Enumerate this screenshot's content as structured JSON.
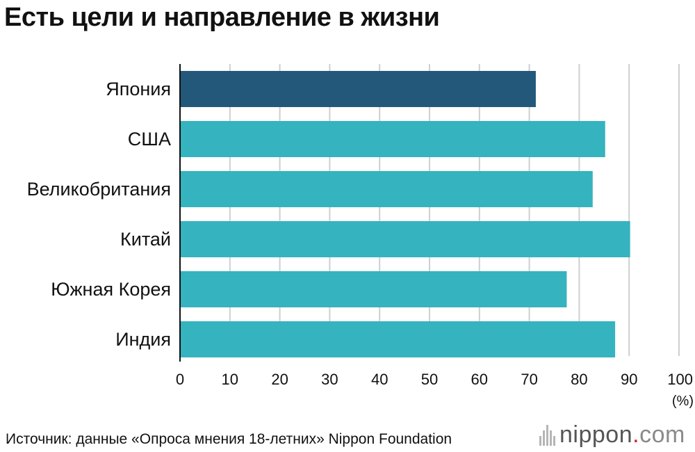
{
  "title": "Есть цели и направление в жизни",
  "source": "Источник: данные «Опроса мнения 18-летних» Nippon Foundation",
  "brand": {
    "name": "nippon",
    "dot": ".",
    "tld": "com"
  },
  "colors": {
    "highlight": "#23587a",
    "bar": "#35b3bf",
    "grid": "#cfcfcf",
    "axis": "#111111"
  },
  "chart_data": {
    "type": "bar",
    "orientation": "horizontal",
    "categories": [
      "Япония",
      "США",
      "Великобритания",
      "Китай",
      "Южная Корея",
      "Индия"
    ],
    "values": [
      71.3,
      85.2,
      82.7,
      90.2,
      77.5,
      87.2
    ],
    "highlight_index": 0,
    "xlim": [
      0,
      100
    ],
    "xticks": [
      0,
      10,
      20,
      30,
      40,
      50,
      60,
      70,
      80,
      90,
      100
    ],
    "xunit": "(%)",
    "grid": true
  }
}
